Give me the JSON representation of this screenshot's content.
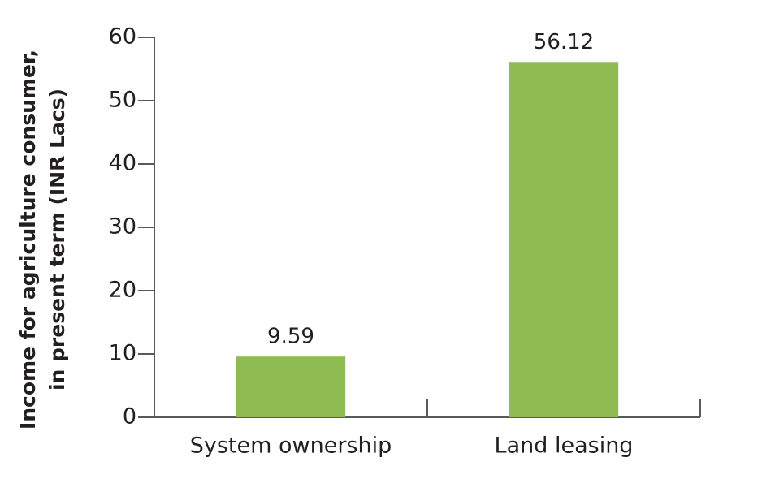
{
  "chart_data": {
    "type": "bar",
    "ylabel": [
      "Income for agriculture consumer,",
      "in present term (INR Lacs)"
    ],
    "categories": [
      "System ownership",
      "Land leasing"
    ],
    "values": [
      9.59,
      56.12
    ],
    "color": "#8fbc52",
    "ylim": [
      0,
      60
    ],
    "yticks": [
      0,
      10,
      20,
      30,
      40,
      50,
      60
    ],
    "grid": false
  }
}
